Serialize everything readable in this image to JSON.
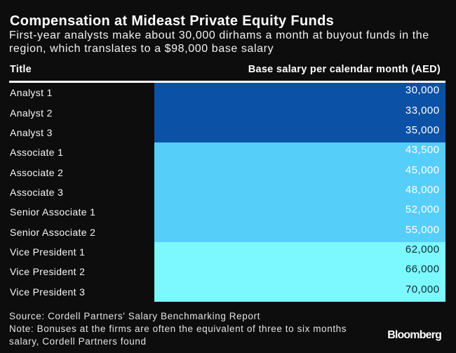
{
  "title": "Compensation at Mideast Private Equity Funds",
  "subtitle_lines": [
    "First-year analysts make about 30,000 dirhams a month at buyout funds in the",
    "region, which translates to a $98,000 base salary"
  ],
  "columns": {
    "left": "Title",
    "right": "Base salary per calendar month (AED)"
  },
  "chart_data": {
    "type": "bar",
    "title": "Compensation at Mideast Private Equity Funds",
    "subtitle": "First-year analysts make about 30,000 dirhams a month at buyout funds in the region, which translates to a $98,000 base salary",
    "xlabel": "Title",
    "ylabel": "Base salary per calendar month (AED)",
    "categories": [
      "Analyst 1",
      "Analyst 2",
      "Analyst 3",
      "Associate 1",
      "Associate 2",
      "Associate 3",
      "Senior Associate 1",
      "Senior Associate 2",
      "Vice President 1",
      "Vice President 2",
      "Vice President 3"
    ],
    "values": [
      30000,
      33000,
      35000,
      43500,
      45000,
      48000,
      52000,
      55000,
      62000,
      66000,
      70000
    ],
    "value_labels": [
      "30,000",
      "33,000",
      "35,000",
      "43,500",
      "45,000",
      "48,000",
      "52,000",
      "55,000",
      "62,000",
      "66,000",
      "70,000"
    ],
    "groups": [
      "analyst",
      "analyst",
      "analyst",
      "associate",
      "associate",
      "associate",
      "associate",
      "associate",
      "vp",
      "vp",
      "vp"
    ],
    "legend_position": "none",
    "grid": false
  },
  "table": {
    "rows": [
      {
        "title": "Analyst 1",
        "value": "30,000",
        "group": "analyst"
      },
      {
        "title": "Analyst 2",
        "value": "33,000",
        "group": "analyst"
      },
      {
        "title": "Analyst 3",
        "value": "35,000",
        "group": "analyst"
      },
      {
        "title": "Associate 1",
        "value": "43,500",
        "group": "associate"
      },
      {
        "title": "Associate 2",
        "value": "45,000",
        "group": "associate"
      },
      {
        "title": "Associate 3",
        "value": "48,000",
        "group": "associate"
      },
      {
        "title": "Senior Associate 1",
        "value": "52,000",
        "group": "associate"
      },
      {
        "title": "Senior Associate 2",
        "value": "55,000",
        "group": "associate"
      },
      {
        "title": "Vice President 1",
        "value": "62,000",
        "group": "vp"
      },
      {
        "title": "Vice President 2",
        "value": "66,000",
        "group": "vp"
      },
      {
        "title": "Vice President 3",
        "value": "70,000",
        "group": "vp"
      }
    ]
  },
  "footer": {
    "source": "Source: Cordell Partners' Salary Benchmarking Report",
    "note_lines": [
      "Note: Bonuses at the firms are often the equivalent of three to six months",
      "salary, Cordell Partners found"
    ]
  },
  "brand": "Bloomberg",
  "colors": {
    "background": "#0d0d0d",
    "analyst_band": "#0b51a5",
    "associate_band": "#56cefa",
    "vp_band": "#7cf8ff",
    "value_on_dark_band": "#ffffff",
    "value_on_light_band": "#0e2a36",
    "header_rule": "#ffffff"
  }
}
